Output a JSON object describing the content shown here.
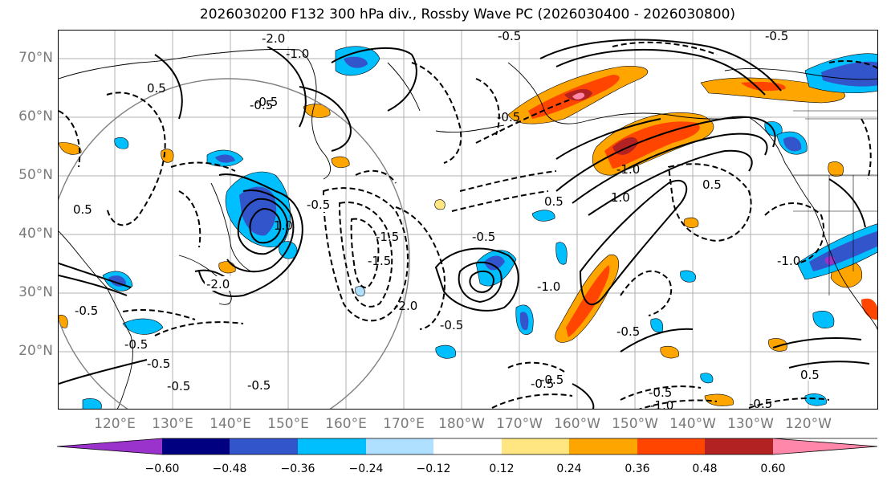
{
  "title": "2026030200 F132 300 hPa div., Rossby Wave PC (2026030400 - 2026030800)",
  "lat_labels": [
    "70°N",
    "60°N",
    "50°N",
    "40°N",
    "30°N",
    "20°N"
  ],
  "lon_labels": [
    "120°E",
    "130°E",
    "140°E",
    "150°E",
    "160°E",
    "170°E",
    "180°W",
    "170°W",
    "160°W",
    "150°W",
    "140°W",
    "130°W",
    "120°W"
  ],
  "colorbar": {
    "ticks": [
      "−0.60",
      "−0.48",
      "−0.36",
      "−0.24",
      "−0.12",
      "0.12",
      "0.24",
      "0.36",
      "0.48",
      "0.60"
    ],
    "colors": [
      "#9933cc",
      "#000080",
      "#3355cc",
      "#00bfff",
      "#b0e0ff",
      "#ffffff",
      "#ffe680",
      "#ffa500",
      "#ff4500",
      "#b22222",
      "#ff88aa"
    ]
  },
  "contour_labels": {
    "c1": "-2.0",
    "c2": "-1.0",
    "c3": "-0.5",
    "c4": "-0.5",
    "c5": "-0.5",
    "c6": "-1.0",
    "c7": "-0.5",
    "c8": "-2.0",
    "c9": "-0.5",
    "c10": "-1.5",
    "c11": "-0.5",
    "c12": "-0.5",
    "c13": "-0.5",
    "c14": "-0.5",
    "c15": "-0.5",
    "c16": "0.5",
    "c17": "-1.0",
    "c18": "-1.5",
    "c19": "0.5",
    "c20": "1.0",
    "c21": "-0.5",
    "c22": "0.5",
    "c23": "-0.5",
    "c24": "-0.5",
    "c25": "1.0",
    "c26": "0.5",
    "c27": "-0.5",
    "c28": "-0.5",
    "c29": "-1.0",
    "c30": "-2.0",
    "c31": "-0.5",
    "c32": "0.5",
    "c33": "-1.0",
    "c34": "-0.5",
    "c35": "-0.5"
  },
  "colors": {
    "frame": "#000000",
    "grid": "#b0b0b0",
    "axis_text": "#7a7a7a",
    "coast": "#000000",
    "circle": "#808080"
  }
}
